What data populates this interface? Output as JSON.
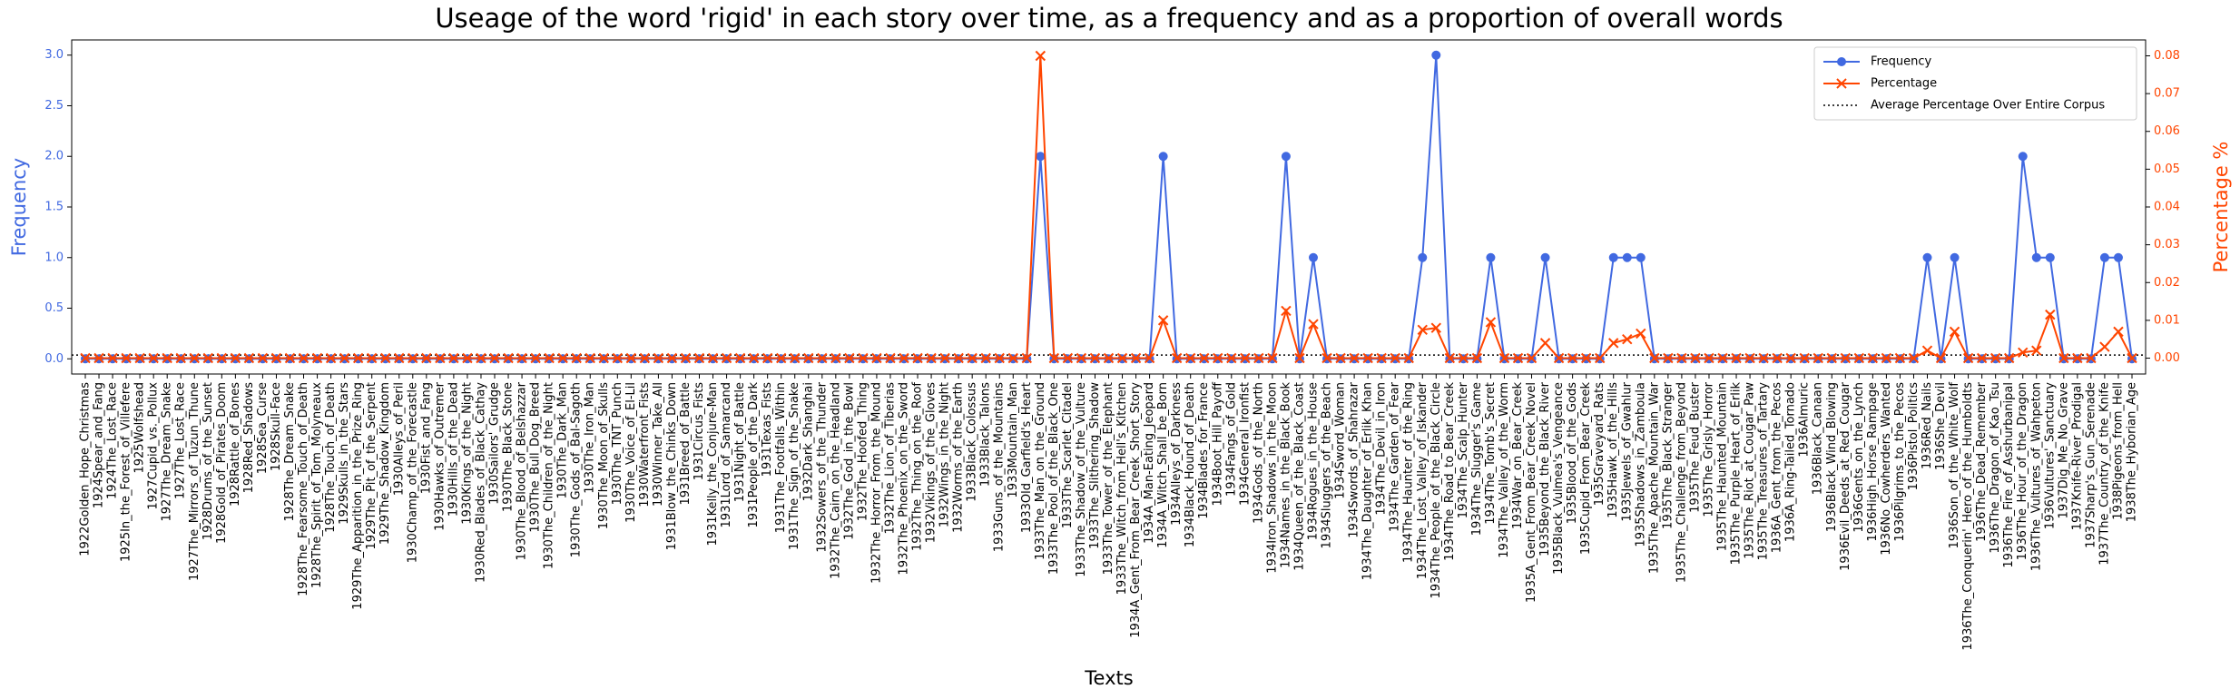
{
  "chart_data": {
    "type": "line",
    "title": "Useage of the word 'rigid' in each story over time, as a frequency and as a proportion of overall words",
    "xlabel": "Texts",
    "ylabel": "Frequency",
    "y2label": "Percentage %",
    "categories": [
      "1922Golden_Hope_Christmas",
      "1924Spear_and_Fang",
      "1924The_Lost_Race",
      "1925In_the_Forest_of_Villefere",
      "1925Wolfshead",
      "1927Cupid_vs._Pollux",
      "1927The_Dream_Snake",
      "1927The_Lost_Race",
      "1927The_Mirrors_of_Tuzun_Thune",
      "1928Drums_of_the_Sunset",
      "1928Gold_of_Pirates_Doom",
      "1928Rattle_of_Bones",
      "1928Red_Shadows",
      "1928Sea_Curse",
      "1928Skull-Face",
      "1928The_Dream_Snake",
      "1928The_Fearsome_Touch_of_Death",
      "1928The_Spirit_of_Tom_Molyneaux",
      "1928The_Touch_of_Death",
      "1929Skulls_in_the_Stars",
      "1929The_Apparition_in_the_Prize_Ring",
      "1929The_Pit_of_the_Serpent",
      "1929The_Shadow_Kingdom",
      "1930Alleys_of_Peril",
      "1930Champ_of_the_Forecastle",
      "1930Fist_and_Fang",
      "1930Hawks_of_Outremer",
      "1930Hills_of_the_Dead",
      "1930Kings_of_the_Night",
      "1930Red_Blades_of_Black_Cathay",
      "1930Sailors'_Grudge",
      "1930The_Black_Stone",
      "1930The_Blood_of_Belshazzar",
      "1930The_Bull_Dog_Breed",
      "1930The_Children_of_the_Night",
      "1930The_Dark_Man",
      "1930The_Gods_of_Bal-Sagoth",
      "1930The_Iron_Man",
      "1930The_Moon_of_Skulls",
      "1930The_TNT_Punch",
      "1930The_Voice_of_El-Lil",
      "1930Waterfront_Fists",
      "1930Winner_Take_All",
      "1931Blow_the_Chinks_Down",
      "1931Breed_of_Battle",
      "1931Circus_Fists",
      "1931Kelly_the_Conjure-Man",
      "1931Lord_of_Samarcand",
      "1931Night_of_Battle",
      "1931People_of_the_Dark",
      "1931Texas_Fists",
      "1931The_Footfalls_Within",
      "1931The_Sign_of_the_Snake",
      "1932Dark_Shanghai",
      "1932Sowers_of_the_Thunder",
      "1932The_Cairn_on_the_Headland",
      "1932The_God_in_the_Bowl",
      "1932The_Hoofed_Thing",
      "1932The_Horror_From_the_Mound",
      "1932The_Lion_of_Tiberias",
      "1932The_Phoenix_on_the_Sword",
      "1932The_Thing_on_the_Roof",
      "1932Vikings_of_the_Gloves",
      "1932Wings_in_the_Night",
      "1932Worms_of_the_Earth",
      "1933Black_Colossus",
      "1933Black_Talons",
      "1933Guns_of_the_Mountains",
      "1933Mountain_Man",
      "1933Old_Garfield's_Heart",
      "1933The_Man_on_the_Ground",
      "1933The_Pool_of_the_Black_One",
      "1933The_Scarlet_Citadel",
      "1933The_Shadow_of_the_Vulture",
      "1933The_Slithering_Shadow",
      "1933The_Tower_of_the_Elephant",
      "1933The_Witch_from_Hell's_Kitchen",
      "1934A_Gent_From_Bear_Creek_Short_Story",
      "1934A_Man-Eating_Jeopard",
      "1934A_Witch_Shall_be_Born",
      "1934Alleys_of_Darkness",
      "1934Black_Hound_of_Death",
      "1934Blades_for_France",
      "1934Boot_Hill_Payoff",
      "1934Fangs_of_Gold",
      "1934General_Ironfist",
      "1934Gods_of_the_North",
      "1934Iron_Shadows_in_the_Moon",
      "1934Names_in_the_Black_Book",
      "1934Queen_of_the_Black_Coast",
      "1934Rogues_in_the_House",
      "1934Sluggers_of_the_Beach",
      "1934Sword_Woman",
      "1934Swords_of_Shahrazar",
      "1934The_Daughter_of_Erlik_Khan",
      "1934The_Devil_in_Iron",
      "1934The_Garden_of_Fear",
      "1934The_Haunter_of_the_Ring",
      "1934The_Lost_Valley_of_Iskander",
      "1934The_People_of_the_Black_Circle",
      "1934The_Road_to_Bear_Creek",
      "1934The_Scalp_Hunter",
      "1934The_Slugger's_Game",
      "1934The_Tomb's_Secret",
      "1934The_Valley_of_the_Worm",
      "1934War_on_Bear_Creek",
      "1935A_Gent_From_Bear_Creek_Novel",
      "1935Beyond_the_Black_River",
      "1935Black_Vulmea's_Vengeance",
      "1935Blood_of_the_Gods",
      "1935Cupid_From_Bear_Creek",
      "1935Graveyard_Rats",
      "1935Hawk_of_the_Hills",
      "1935Jewels_of_Gwahlur",
      "1935Shadows_in_Zamboula",
      "1935The_Apache_Mountain_War",
      "1935The_Black_Stranger",
      "1935The_Challenge_from_Beyond",
      "1935The_Feud_Buster",
      "1935The_Grisly_Horror",
      "1935The_Haunted_Mountain",
      "1935The_Purple_Heart_of_Erlik",
      "1935The_Riot_at_Cougar_Paw",
      "1935The_Treasures_of_Tartary",
      "1936A_Gent_from_the_Pecos",
      "1936A_Ring-Tailed_Tornado",
      "1936Almuric",
      "1936Black_Canaan",
      "1936Black_Wind_Blowing",
      "1936Evil_Deeds_at_Red_Cougar",
      "1936Gents_on_the_Lynch",
      "1936High_Horse_Rampage",
      "1936No_Cowherders_Wanted",
      "1936Pilgrims_to_the_Pecos",
      "1936Pistol_Politics",
      "1936Red_Nails",
      "1936She_Devil",
      "1936Son_of_the_White_Wolf",
      "1936The_Conquerin'_Hero_of_the_Humboldts",
      "1936The_Dead_Remember",
      "1936The_Dragon_of_Kao_Tsu",
      "1936The_Fire_of_Asshurbanipal",
      "1936The_Hour_of_the_Dragon",
      "1936The_Vultures_of_Wahpeton",
      "1936Vultures'_Sanctuary",
      "1937Dig_Me_No_Grave",
      "1937Knife-River_Prodigal",
      "1937Sharp's_Gun_Serenade",
      "1937The_Country_of_the_Knife",
      "1938Pigeons_from_Hell",
      "1938The_Hyborian_Age"
    ],
    "series": [
      {
        "name": "Frequency",
        "color": "#4169e1",
        "marker": "o",
        "values": [
          0,
          0,
          0,
          0,
          0,
          0,
          0,
          0,
          0,
          0,
          0,
          0,
          0,
          0,
          0,
          0,
          0,
          0,
          0,
          0,
          0,
          0,
          0,
          0,
          0,
          0,
          0,
          0,
          0,
          0,
          0,
          0,
          0,
          0,
          0,
          0,
          0,
          0,
          0,
          0,
          0,
          0,
          0,
          0,
          0,
          0,
          0,
          0,
          0,
          0,
          0,
          0,
          0,
          0,
          0,
          0,
          0,
          0,
          0,
          0,
          0,
          0,
          0,
          0,
          0,
          0,
          0,
          0,
          0,
          0,
          2,
          0,
          0,
          0,
          0,
          0,
          0,
          0,
          0,
          2,
          0,
          0,
          0,
          0,
          0,
          0,
          0,
          0,
          2,
          0,
          1,
          0,
          0,
          0,
          0,
          0,
          0,
          0,
          1,
          3,
          0,
          0,
          0,
          1,
          0,
          0,
          0,
          1,
          0,
          0,
          0,
          0,
          1,
          1,
          1,
          0,
          0,
          0,
          0,
          0,
          0,
          0,
          0,
          0,
          0,
          0,
          0,
          0,
          0,
          0,
          0,
          0,
          0,
          0,
          0,
          1,
          0,
          1,
          0,
          0,
          0,
          0,
          2,
          1,
          1,
          0,
          0,
          0,
          1,
          1,
          0
        ]
      },
      {
        "name": "Percentage",
        "color": "#ff4500",
        "marker": "x",
        "axis": "y2",
        "values": [
          0,
          0,
          0,
          0,
          0,
          0,
          0,
          0,
          0,
          0,
          0,
          0,
          0,
          0,
          0,
          0,
          0,
          0,
          0,
          0,
          0,
          0,
          0,
          0,
          0,
          0,
          0,
          0,
          0,
          0,
          0,
          0,
          0,
          0,
          0,
          0,
          0,
          0,
          0,
          0,
          0,
          0,
          0,
          0,
          0,
          0,
          0,
          0,
          0,
          0,
          0,
          0,
          0,
          0,
          0,
          0,
          0,
          0,
          0,
          0,
          0,
          0,
          0,
          0,
          0,
          0,
          0,
          0,
          0,
          0,
          0.08,
          0,
          0,
          0,
          0,
          0,
          0,
          0,
          0,
          0.01,
          0,
          0,
          0,
          0,
          0,
          0,
          0,
          0,
          0.0125,
          0,
          0.009,
          0,
          0,
          0,
          0,
          0,
          0,
          0,
          0.0075,
          0.008,
          0,
          0,
          0,
          0.0095,
          0,
          0,
          0,
          0.004,
          0,
          0,
          0,
          0,
          0.004,
          0.005,
          0.0065,
          0,
          0,
          0,
          0,
          0,
          0,
          0,
          0,
          0,
          0,
          0,
          0,
          0,
          0,
          0,
          0,
          0,
          0,
          0,
          0,
          0.002,
          0,
          0.007,
          0,
          0,
          0,
          0,
          0.0015,
          0.002,
          0.0115,
          0,
          0,
          0,
          0.003,
          0.007,
          0
        ]
      }
    ],
    "reference_line": {
      "name": "Average Percentage Over Entire Corpus",
      "value": 0.0008,
      "color": "#000000",
      "axis": "y2"
    },
    "ylim": [
      -0.15,
      3.15
    ],
    "yticks": [
      {
        "value": 0,
        "label": "0.0"
      },
      0.5,
      {
        "value": 1,
        "label": "1.0"
      },
      1.5,
      {
        "value": 2,
        "label": "2.0"
      },
      2.5,
      {
        "value": 3,
        "label": "3.0"
      }
    ],
    "y2lim": [
      -0.0042,
      0.0842
    ],
    "y2ticks": [
      {
        "value": 0,
        "label": "0.00"
      },
      0.01,
      0.02,
      0.03,
      0.04,
      0.05,
      0.06,
      0.07,
      0.08
    ],
    "legend": "upper right",
    "grid": false
  }
}
